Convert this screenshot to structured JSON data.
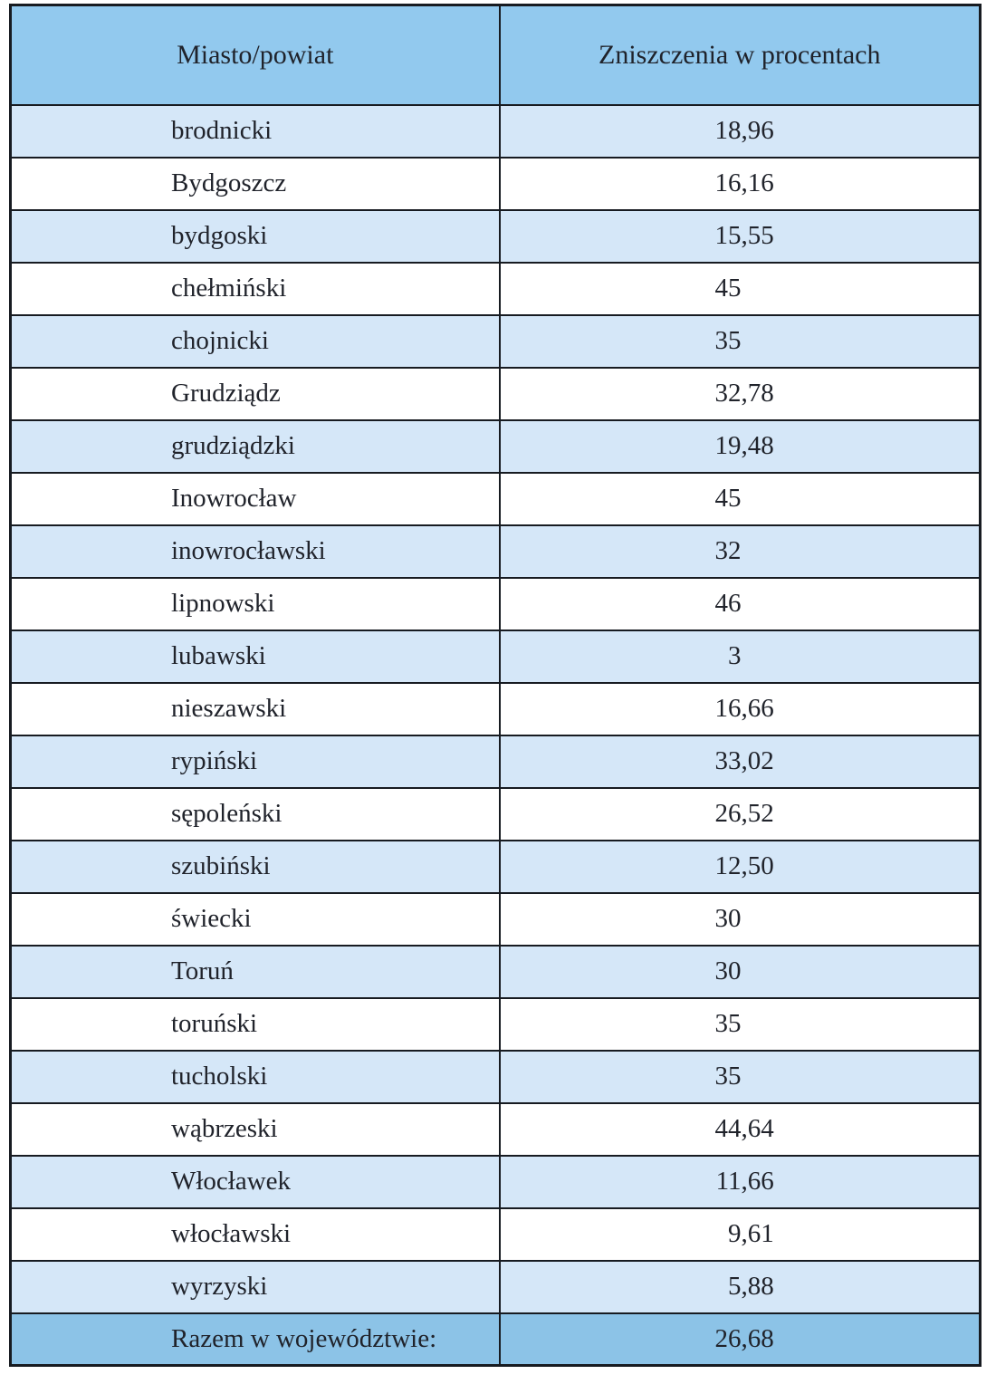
{
  "table": {
    "header": {
      "col1": "Miasto/powiat",
      "col2": "Zniszczenia w procentach"
    },
    "rows": [
      {
        "name": "brodnicki",
        "value": "18,96"
      },
      {
        "name": "Bydgoszcz",
        "value": "16,16"
      },
      {
        "name": "bydgoski",
        "value": "15,55"
      },
      {
        "name": "chełmiński",
        "value": "45"
      },
      {
        "name": "chojnicki",
        "value": "35"
      },
      {
        "name": "Grudziądz",
        "value": "32,78"
      },
      {
        "name": "grudziądzki",
        "value": "19,48"
      },
      {
        "name": "Inowrocław",
        "value": "45"
      },
      {
        "name": "inowrocławski",
        "value": "32"
      },
      {
        "name": "lipnowski",
        "value": "46"
      },
      {
        "name": "lubawski",
        "value": "3"
      },
      {
        "name": "nieszawski",
        "value": "16,66"
      },
      {
        "name": "rypiński",
        "value": "33,02"
      },
      {
        "name": "sępoleński",
        "value": "26,52"
      },
      {
        "name": "szubiński",
        "value": "12,50"
      },
      {
        "name": "świecki",
        "value": "30"
      },
      {
        "name": "Toruń",
        "value": "30"
      },
      {
        "name": "toruński",
        "value": "35"
      },
      {
        "name": "tucholski",
        "value": "35"
      },
      {
        "name": "wąbrzeski",
        "value": "44,64"
      },
      {
        "name": "Włocławek",
        "value": "11,66"
      },
      {
        "name": "włocławski",
        "value": "9,61"
      },
      {
        "name": "wyrzyski",
        "value": "5,88"
      }
    ],
    "total": {
      "label": "Razem w województwie:",
      "value": "26,68"
    },
    "colors": {
      "header_bg": "#92c9ee",
      "stripe_bg": "#d5e7f8",
      "plain_bg": "#ffffff",
      "total_bg": "#8cc3e7",
      "border": "#171b21",
      "text": "#20232b"
    }
  }
}
